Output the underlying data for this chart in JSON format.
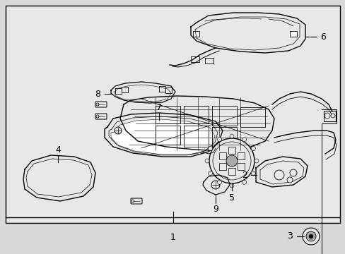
{
  "background_color": "#d8d8d8",
  "fig_width": 4.89,
  "fig_height": 3.6,
  "dpi": 100
}
